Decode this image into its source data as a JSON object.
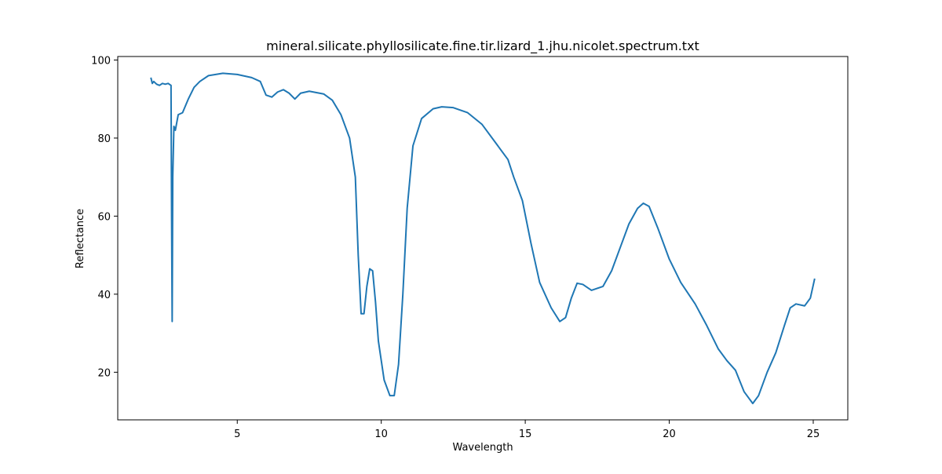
{
  "chart_data": {
    "type": "line",
    "title": "mineral.silicate.phyllosilicate.fine.tir.lizard_1.jhu.nicolet.spectrum.txt",
    "xlabel": "Wavelength",
    "ylabel": "Reflectance",
    "xlim": [
      0.85,
      26.2
    ],
    "ylim": [
      7.8,
      100.9
    ],
    "xticks": [
      5,
      10,
      15,
      20,
      25
    ],
    "yticks": [
      20,
      40,
      60,
      80,
      100
    ],
    "x": [
      2.0,
      2.05,
      2.1,
      2.2,
      2.3,
      2.4,
      2.5,
      2.6,
      2.7,
      2.72,
      2.74,
      2.76,
      2.8,
      2.85,
      2.9,
      2.95,
      3.1,
      3.3,
      3.5,
      3.7,
      4.0,
      4.5,
      5.0,
      5.5,
      5.8,
      6.0,
      6.2,
      6.4,
      6.6,
      6.8,
      7.0,
      7.2,
      7.5,
      8.0,
      8.3,
      8.6,
      8.9,
      9.1,
      9.2,
      9.3,
      9.4,
      9.5,
      9.6,
      9.7,
      9.8,
      9.9,
      10.1,
      10.3,
      10.45,
      10.6,
      10.75,
      10.9,
      11.1,
      11.4,
      11.8,
      12.1,
      12.5,
      13.0,
      13.5,
      14.0,
      14.4,
      14.6,
      14.9,
      15.2,
      15.5,
      15.9,
      16.2,
      16.4,
      16.6,
      16.8,
      17.0,
      17.3,
      17.7,
      18.0,
      18.3,
      18.6,
      18.9,
      19.1,
      19.3,
      19.6,
      20.0,
      20.4,
      20.9,
      21.3,
      21.7,
      22.0,
      22.3,
      22.6,
      22.9,
      23.1,
      23.4,
      23.7,
      24.0,
      24.2,
      24.4,
      24.7,
      24.9,
      25.05
    ],
    "series": [
      {
        "color": "#1f77b4",
        "values": [
          95.5,
          94,
          94.5,
          93.8,
          93.5,
          94,
          93.8,
          94,
          93.5,
          60,
          33,
          70,
          83,
          82,
          84,
          86,
          86.5,
          90,
          93,
          94.5,
          96,
          96.6,
          96.3,
          95.5,
          94.5,
          91,
          90.5,
          91.8,
          92.4,
          91.5,
          90,
          91.5,
          92,
          91.3,
          89.7,
          86,
          80,
          70,
          50,
          35,
          35,
          42,
          46.5,
          46,
          38,
          28,
          18,
          14,
          14,
          22,
          40,
          62,
          78,
          85,
          87.5,
          88,
          87.8,
          86.5,
          83.5,
          78.5,
          74.5,
          70,
          64,
          53,
          43,
          36.5,
          33,
          34,
          39,
          42.8,
          42.5,
          41,
          42,
          46,
          52,
          58,
          62,
          63.3,
          62.5,
          57,
          49,
          43,
          37.5,
          32,
          26,
          23,
          20.5,
          15,
          12,
          14,
          20,
          25,
          32,
          36.5,
          37.5,
          37,
          39,
          44
        ]
      }
    ]
  }
}
